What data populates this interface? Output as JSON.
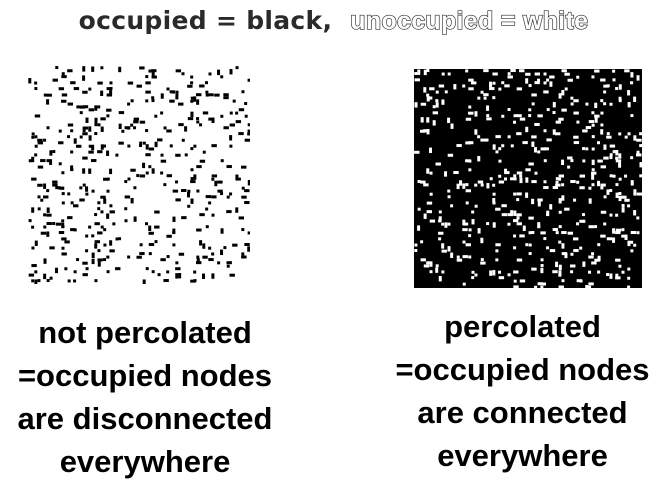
{
  "title": {
    "occupied": "occupied = black,",
    "unoccupied": "unoccupied = white"
  },
  "colors": {
    "occupied": "#000000",
    "unoccupied": "#ffffff"
  },
  "panels": [
    {
      "id": "not-percolated",
      "caption_lines": [
        "not percolated",
        "=occupied nodes",
        "are disconnected",
        "everywhere"
      ]
    },
    {
      "id": "percolated",
      "caption_lines": [
        "percolated",
        "=occupied nodes",
        "are connected",
        "everywhere"
      ]
    }
  ]
}
